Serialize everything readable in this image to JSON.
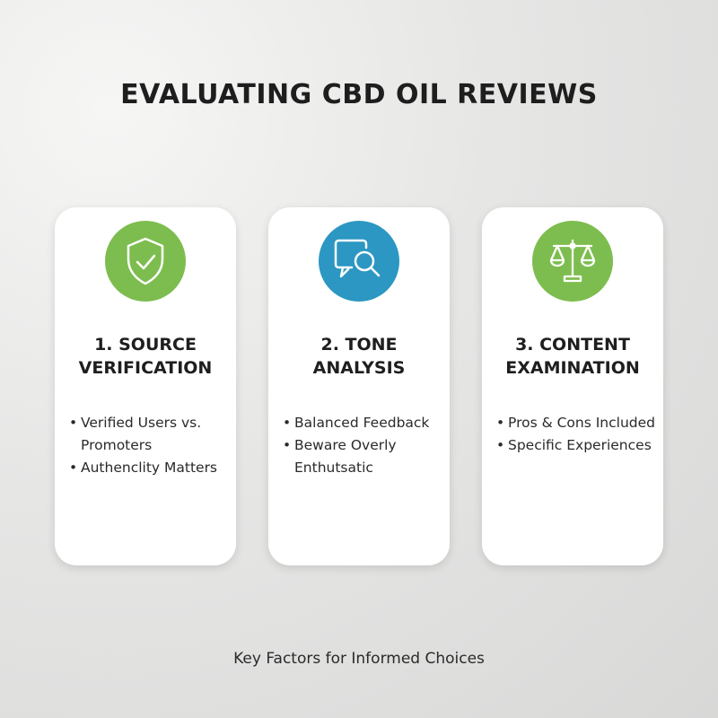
{
  "title": "EVALUATING CBD OIL REVIEWS",
  "colors": {
    "green": "#7dbd4f",
    "blue": "#2b97c2"
  },
  "cards": [
    {
      "icon": "shield-check-icon",
      "heading_line1": "1. SOURCE",
      "heading_line2": "VERIFICATION",
      "bullets": [
        "Verified Users vs. Promoters",
        "Authenclity Matters"
      ]
    },
    {
      "icon": "chat-search-icon",
      "heading_line1": "2. TONE",
      "heading_line2": "ANALYSIS",
      "bullets": [
        "Balanced Feedback",
        "Beware Overly Enthutsatic"
      ]
    },
    {
      "icon": "balance-scale-icon",
      "heading_line1": "3. CONTENT",
      "heading_line2": "EXAMINATION",
      "bullets": [
        "Pros & Cons Included",
        "Specific Experiences"
      ]
    }
  ],
  "footer": "Key Factors for Informed Choices"
}
